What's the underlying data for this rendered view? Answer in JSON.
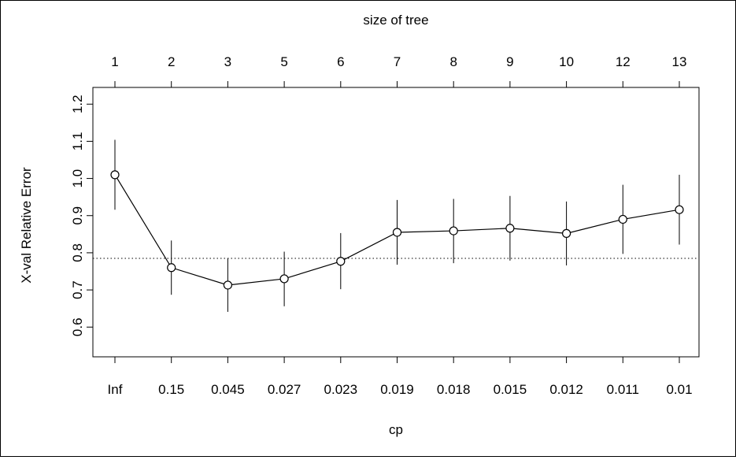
{
  "chart_data": {
    "type": "line",
    "title": "",
    "top_axis_title": "size of tree",
    "xlabel": "cp",
    "ylabel": "X-val Relative Error",
    "categories": [
      "Inf",
      "0.15",
      "0.045",
      "0.027",
      "0.023",
      "0.019",
      "0.018",
      "0.015",
      "0.012",
      "0.011",
      "0.01"
    ],
    "top_categories": [
      "1",
      "2",
      "3",
      "5",
      "6",
      "7",
      "8",
      "9",
      "10",
      "12",
      "13"
    ],
    "values": [
      1.01,
      0.76,
      0.713,
      0.73,
      0.777,
      0.855,
      0.859,
      0.866,
      0.852,
      0.89,
      0.916
    ],
    "error_low": [
      0.916,
      0.687,
      0.641,
      0.656,
      0.702,
      0.768,
      0.772,
      0.779,
      0.766,
      0.797,
      0.822
    ],
    "error_high": [
      1.104,
      0.833,
      0.785,
      0.803,
      0.853,
      0.942,
      0.945,
      0.953,
      0.938,
      0.983,
      1.01
    ],
    "reference_line": 0.785,
    "ylim": [
      0.52,
      1.245
    ],
    "yticks": [
      "0.6",
      "0.7",
      "0.8",
      "0.9",
      "1.0",
      "1.1",
      "1.2"
    ],
    "ytick_values": [
      0.6,
      0.7,
      0.8,
      0.9,
      1.0,
      1.1,
      1.2
    ],
    "grid": false,
    "legend": "none"
  }
}
